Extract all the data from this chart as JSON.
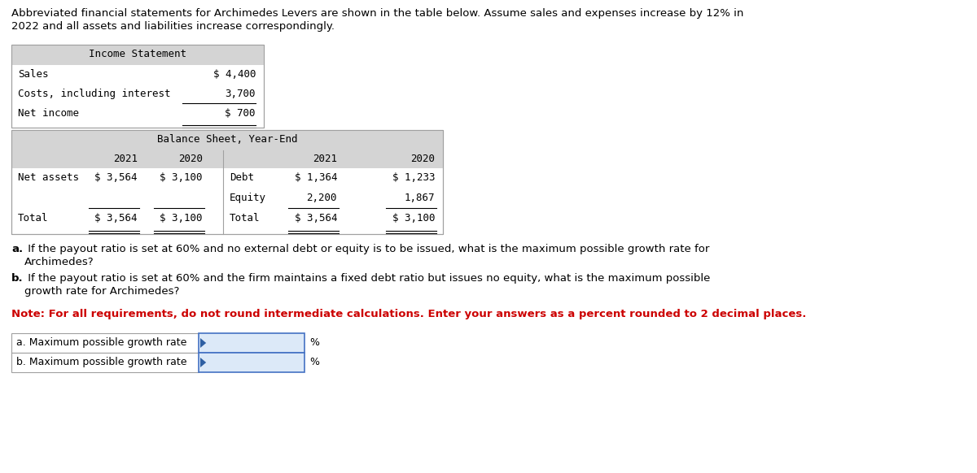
{
  "bg_color": "#ffffff",
  "header_line1": "Abbreviated financial statements for Archimedes Levers are shown in the table below. Assume sales and expenses increase by 12% in",
  "header_line2": "2022 and all assets and liabilities increase correspondingly.",
  "income_statement_title": "Income Statement",
  "is_rows": [
    {
      "label": "Sales",
      "value": "$ 4,400"
    },
    {
      "label": "Costs, including interest",
      "value": "3,700"
    },
    {
      "label": "Net income",
      "value": "$ 700"
    }
  ],
  "bs_title": "Balance Sheet, Year-End",
  "bs_left_rows": [
    {
      "label": "Net assets",
      "val2021": "$ 3,564",
      "val2020": "$ 3,100"
    },
    {
      "label": "",
      "val2021": "",
      "val2020": ""
    },
    {
      "label": "Total",
      "val2021": "$ 3,564",
      "val2020": "$ 3,100"
    }
  ],
  "bs_right_rows": [
    {
      "label": "Debt",
      "val2021": "$ 1,364",
      "val2020": "$ 1,233"
    },
    {
      "label": "Equity",
      "val2021": "2,200",
      "val2020": "1,867"
    },
    {
      "label": "Total",
      "val2021": "$ 3,564",
      "val2020": "$ 3,100"
    }
  ],
  "q_a": "a. If the payout ratio is set at 60% and no external debt or equity is to be issued, what is the maximum possible growth rate for",
  "q_a2": "    Archimedes?",
  "q_b": "b. If the payout ratio is set at 60% and the firm maintains a fixed debt ratio but issues no equity, what is the maximum possible",
  "q_b2": "    growth rate for Archimedes?",
  "note": "Note: For all requirements, do not round intermediate calculations. Enter your answers as a percent rounded to 2 decimal places.",
  "ans_a_label": "a. Maximum possible growth rate",
  "ans_b_label": "b. Maximum possible growth rate",
  "ans_unit": "%",
  "table_gray": "#d4d4d4",
  "table_border": "#a0a0a0",
  "input_bg": "#dce9f8",
  "input_border": "#4472c4",
  "note_color": "#cc0000",
  "arrow_color": "#2e5fa3"
}
